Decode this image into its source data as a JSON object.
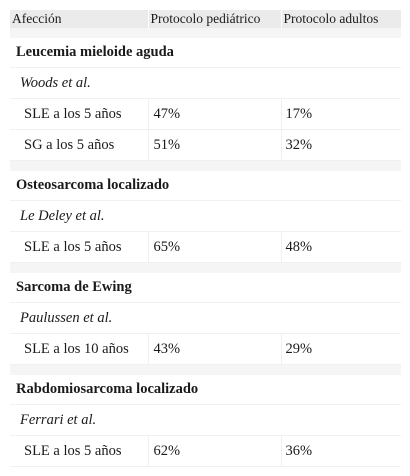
{
  "header": {
    "col1": "Afección",
    "col2": "Protocolo pediátrico",
    "col3": "Protocolo adultos"
  },
  "groups": [
    {
      "title": "Leucemia mieloide aguda",
      "author": "Woods et al.",
      "rows": [
        {
          "label": "SLE a los 5 años",
          "ped": "47%",
          "adult": "17%"
        },
        {
          "label": "SG a los 5 años",
          "ped": "51%",
          "adult": "32%"
        }
      ]
    },
    {
      "title": "Osteosarcoma localizado",
      "author": "Le Deley et al.",
      "rows": [
        {
          "label": "SLE a los 5 años",
          "ped": "65%",
          "adult": "48%"
        }
      ]
    },
    {
      "title": "Sarcoma de Ewing",
      "author": "Paulussen et al.",
      "rows": [
        {
          "label": "SLE a los 10 años",
          "ped": "43%",
          "adult": "29%"
        }
      ]
    },
    {
      "title": "Rabdomiosarcoma localizado",
      "author": "Ferrari et al.",
      "rows": [
        {
          "label": "SLE a los 5 años",
          "ped": "62%",
          "adult": "36%"
        }
      ]
    }
  ]
}
